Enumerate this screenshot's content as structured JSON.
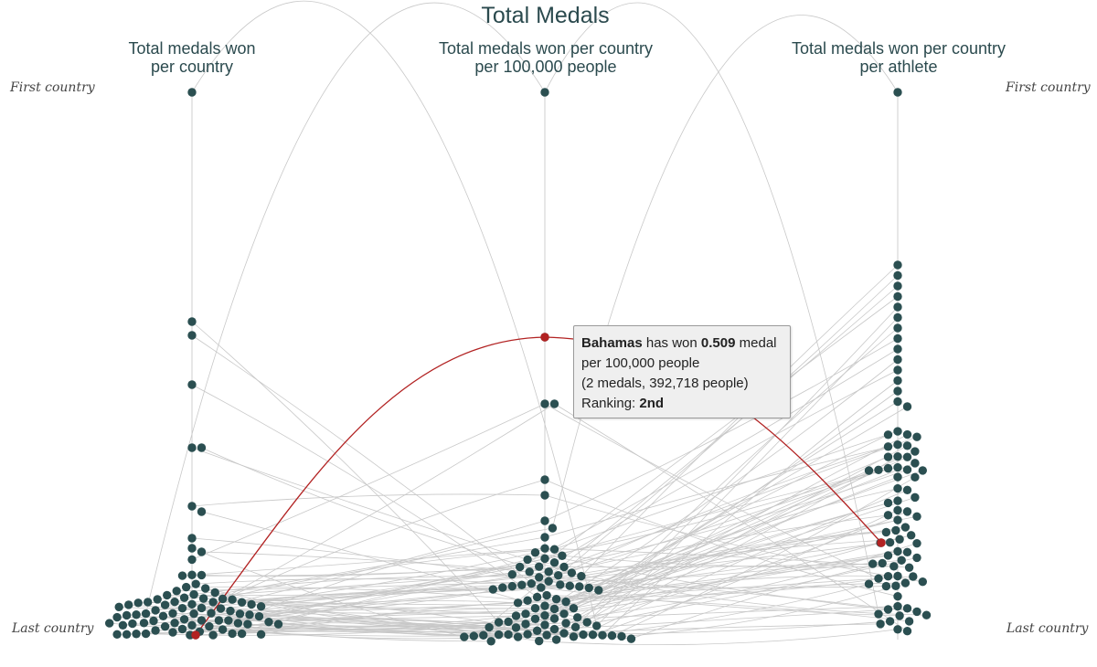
{
  "chart_data": {
    "type": "scatter",
    "title": "Total Medals",
    "axes": [
      {
        "label_line1": "Total medals won",
        "label_line2": "per country"
      },
      {
        "label_line1": "Total medals won per country",
        "label_line2": "per 100,000 people"
      },
      {
        "label_line1": "Total medals won per country",
        "label_line2": "per athlete"
      }
    ],
    "rank_labels": {
      "top": "First country",
      "bottom": "Last country"
    },
    "highlight": {
      "country": "Bahamas",
      "value": "0.509",
      "medals": 2,
      "population": "392,718",
      "ranking": "2nd"
    },
    "tooltip": {
      "country": "Bahamas",
      "line1_mid": " has won ",
      "value": "0.509",
      "line1_end": " medal",
      "line2": "per 100,000 people",
      "line3": "(2 medals, 392,718 people)",
      "ranking_prefix": "Ranking: ",
      "ranking": "2nd"
    },
    "colors": {
      "dot": "#2b4f51",
      "highlight": "#b22222",
      "link": "#c8c8c8",
      "axis": "#cfcfcf",
      "text": "#2b4a4e"
    }
  }
}
